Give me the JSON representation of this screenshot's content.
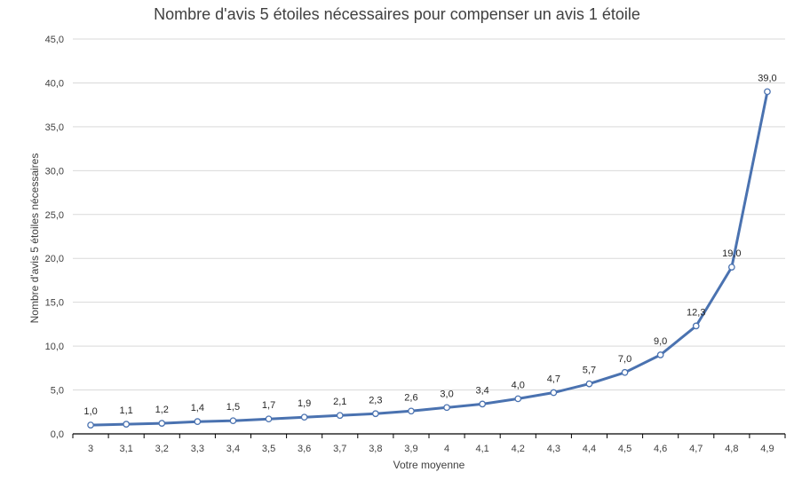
{
  "chart_data": {
    "type": "line",
    "title": "Nombre d'avis 5 étoiles nécessaires pour compenser un avis 1 étoile",
    "xlabel": "Votre moyenne",
    "ylabel": "Nombre d'avis 5 étoiles nécessaires",
    "categories": [
      "3",
      "3,1",
      "3,2",
      "3,3",
      "3,4",
      "3,5",
      "3,6",
      "3,7",
      "3,8",
      "3,9",
      "4",
      "4,1",
      "4,2",
      "4,3",
      "4,4",
      "4,5",
      "4,6",
      "4,7",
      "4,8",
      "4,9"
    ],
    "values": [
      1.0,
      1.1,
      1.2,
      1.4,
      1.5,
      1.7,
      1.9,
      2.1,
      2.3,
      2.6,
      3.0,
      3.4,
      4.0,
      4.7,
      5.7,
      7.0,
      9.0,
      12.3,
      19.0,
      39.0
    ],
    "data_labels": [
      "1,0",
      "1,1",
      "1,2",
      "1,4",
      "1,5",
      "1,7",
      "1,9",
      "2,1",
      "2,3",
      "2,6",
      "3,0",
      "3,4",
      "4,0",
      "4,7",
      "5,7",
      "7,0",
      "9,0",
      "12,3",
      "19,0",
      "39,0"
    ],
    "ylim": [
      0,
      45
    ],
    "yticks": [
      "0,0",
      "5,0",
      "10,0",
      "15,0",
      "20,0",
      "25,0",
      "30,0",
      "35,0",
      "40,0",
      "45,0"
    ],
    "grid": true,
    "colors": {
      "line": "#4a72b0",
      "marker_fill": "#ffffff",
      "grid": "#d9d9d9",
      "axis": "#000000"
    }
  }
}
